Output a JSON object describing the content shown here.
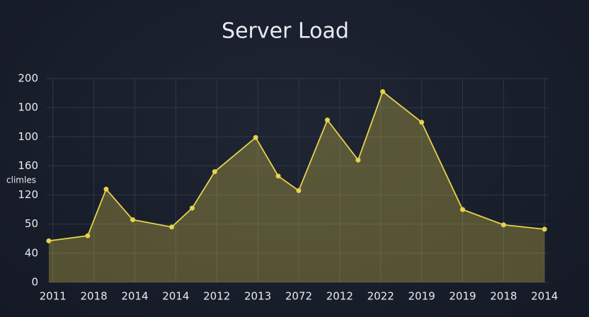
{
  "chart_data": {
    "type": "area",
    "title": "Server Load",
    "y_label": "climles",
    "x": [
      -0.1,
      0.85,
      1.3,
      1.95,
      2.9,
      3.4,
      3.95,
      4.95,
      5.5,
      6,
      6.7,
      7.45,
      8.05,
      9,
      10,
      11,
      12
    ],
    "series": [
      {
        "name": "Server Load",
        "color": "#e6d24c",
        "values": [
          57,
          64,
          128,
          86,
          76,
          102,
          152,
          199,
          146,
          126,
          223,
          168,
          262,
          220,
          100,
          79,
          73
        ]
      }
    ],
    "xlim": [
      -0.15,
      12.1
    ],
    "xticks": [
      {
        "value": 0,
        "label": "2011"
      },
      {
        "value": 1,
        "label": "2018"
      },
      {
        "value": 2,
        "label": "2014"
      },
      {
        "value": 3,
        "label": "2014"
      },
      {
        "value": 4,
        "label": "2012"
      },
      {
        "value": 5,
        "label": "2013"
      },
      {
        "value": 6,
        "label": "2072"
      },
      {
        "value": 7,
        "label": "2012"
      },
      {
        "value": 8,
        "label": "2022"
      },
      {
        "value": 9,
        "label": "2019"
      },
      {
        "value": 10,
        "label": "2019"
      },
      {
        "value": 11,
        "label": "2018"
      },
      {
        "value": 12,
        "label": "2014"
      }
    ],
    "ylim": [
      0,
      280
    ],
    "yticks": [
      0,
      40,
      {
        "value": 80,
        "label": "50"
      },
      120,
      160,
      {
        "value": 200,
        "label": "100"
      },
      {
        "value": 240,
        "label": "100"
      },
      {
        "value": 280,
        "label": "200"
      }
    ],
    "grid": true
  }
}
